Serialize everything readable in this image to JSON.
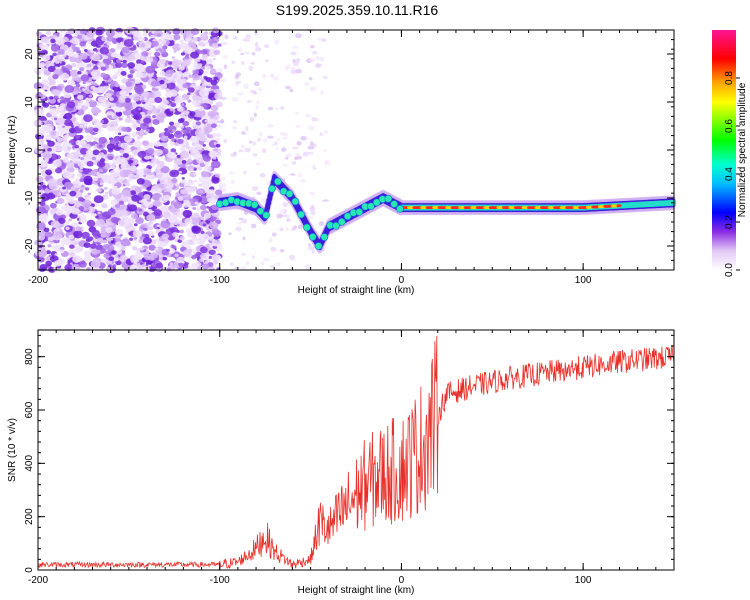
{
  "title": "S199.2025.359.10.11.R16",
  "chart_data": [
    {
      "type": "heatmap",
      "xlabel": "Height of straight line (km)",
      "ylabel": "Frequency (Hz)",
      "xlim": [
        -200,
        150
      ],
      "ylim": [
        -25,
        25
      ],
      "xticks": [
        -200,
        -100,
        0,
        100
      ],
      "yticks": [
        -20,
        -10,
        0,
        10,
        20
      ],
      "colorbar": {
        "label": "Normalized spectral amplitude",
        "range": [
          0,
          1
        ],
        "ticks": [
          0.0,
          0.2,
          0.4,
          0.6,
          0.8
        ],
        "tick_labels": [
          "0.0",
          "0.2",
          "0.4",
          "0.6",
          "0.8"
        ]
      },
      "trace": {
        "description_points": [
          [
            -100,
            -11
          ],
          [
            -90,
            -10.5
          ],
          [
            -80,
            -12
          ],
          [
            -75,
            -14
          ],
          [
            -70,
            -6
          ],
          [
            -60,
            -10
          ],
          [
            -50,
            -17
          ],
          [
            -45,
            -20
          ],
          [
            -40,
            -16
          ],
          [
            -30,
            -14
          ],
          [
            -20,
            -12
          ],
          [
            -10,
            -10
          ],
          [
            0,
            -12
          ],
          [
            50,
            -12
          ],
          [
            100,
            -12
          ],
          [
            150,
            -11
          ]
        ]
      }
    },
    {
      "type": "line",
      "xlabel": "Height of straight line (km)",
      "ylabel": "SNR (10 * v/v)",
      "xlim": [
        -200,
        150
      ],
      "ylim": [
        0,
        900
      ],
      "xticks": [
        -200,
        -100,
        0,
        100
      ],
      "yticks": [
        0,
        200,
        400,
        600,
        800
      ],
      "color": "#e8302a",
      "series_envelope": [
        [
          -200,
          20
        ],
        [
          -100,
          20
        ],
        [
          -90,
          30
        ],
        [
          -80,
          80
        ],
        [
          -75,
          130
        ],
        [
          -70,
          70
        ],
        [
          -60,
          20
        ],
        [
          -50,
          40
        ],
        [
          -45,
          180
        ],
        [
          -40,
          150
        ],
        [
          -30,
          240
        ],
        [
          -20,
          320
        ],
        [
          -10,
          360
        ],
        [
          0,
          380
        ],
        [
          10,
          450
        ],
        [
          20,
          580
        ],
        [
          25,
          660
        ],
        [
          40,
          690
        ],
        [
          60,
          720
        ],
        [
          80,
          740
        ],
        [
          100,
          760
        ],
        [
          120,
          780
        ],
        [
          150,
          800
        ]
      ]
    }
  ]
}
